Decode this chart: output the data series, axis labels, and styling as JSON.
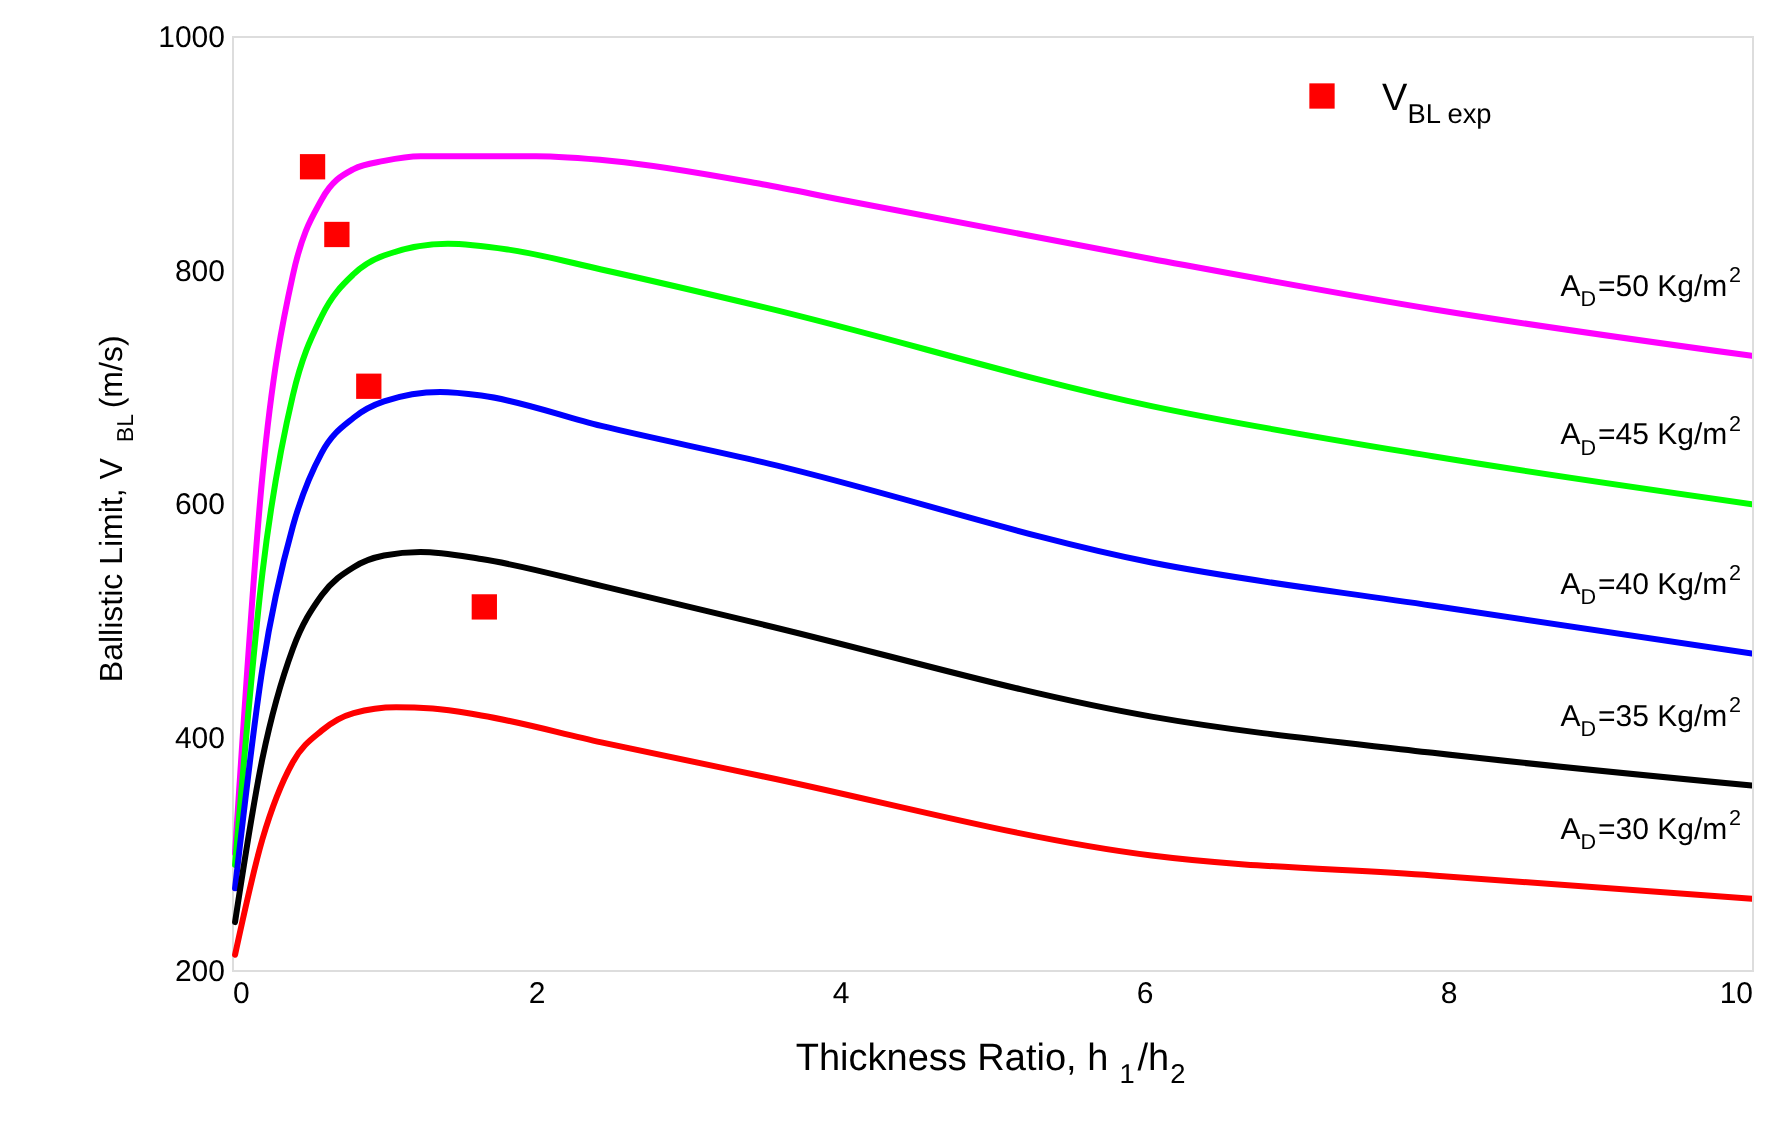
{
  "chart_data": {
    "type": "line",
    "xlabel": "Thickness Ratio, h$_{1}$/h$_{2}$",
    "ylabel": "Ballistic Limit, V$_{BL}$ (m/s)",
    "xlim": [
      0,
      10
    ],
    "xticks": [
      0,
      2,
      4,
      6,
      8,
      10
    ],
    "ylim": [
      200,
      1000
    ],
    "yticks": [
      200,
      400,
      600,
      800,
      1000
    ],
    "grid": false,
    "legend": "top right",
    "line_style": "solid",
    "series": [
      {
        "name": "A$_{D}$=50 Kg/m$^{2}$",
        "color": "#ff00ff",
        "x": [
          0.02,
          0.2,
          0.4,
          0.59,
          0.8,
          1.0,
          1.24,
          2.0,
          2.5,
          3.49,
          4.0,
          6.05,
          7.9,
          10.0
        ],
        "values": [
          300,
          623,
          795,
          860,
          886,
          893,
          897,
          897,
          893,
          873,
          860,
          809,
          766,
          726
        ]
      },
      {
        "name": "A$_{D}$=45 Kg/m$^{2}$",
        "color": "#00ff00",
        "x": [
          0.02,
          0.2,
          0.4,
          0.59,
          0.8,
          1.0,
          1.42,
          1.82,
          2.43,
          3.49,
          6.05,
          7.9,
          10.0
        ],
        "values": [
          290,
          540,
          692,
          760,
          796,
          812,
          822,
          817,
          800,
          768,
          683,
          640,
          599
        ]
      },
      {
        "name": "A$_{D}$=40 Kg/m$^{2}$",
        "color": "#0000ff",
        "x": [
          0.02,
          0.2,
          0.4,
          0.59,
          0.8,
          1.0,
          1.37,
          1.64,
          2.43,
          3.49,
          6.05,
          7.9,
          10.0
        ],
        "values": [
          270,
          458,
          580,
          643,
          673,
          687,
          695,
          692,
          666,
          635,
          549,
          512,
          471
        ]
      },
      {
        "name": "A$_{D}$=35 Kg/m$^{2}$",
        "color": "#000000",
        "x": [
          0.02,
          0.2,
          0.4,
          0.59,
          0.8,
          1.0,
          1.24,
          1.64,
          2.43,
          3.49,
          6.05,
          7.9,
          10.0
        ],
        "values": [
          241,
          381,
          475,
          521,
          545,
          555,
          558,
          552,
          529,
          496,
          417,
          386,
          358
        ]
      },
      {
        "name": "A$_{D}$=30 Kg/m$^{2}$",
        "color": "#ff0000",
        "x": [
          0.02,
          0.2,
          0.4,
          0.59,
          0.8,
          1.08,
          1.32,
          1.64,
          2.43,
          3.49,
          6.05,
          7.9,
          10.0
        ],
        "values": [
          213,
          312,
          378,
          405,
          420,
          425,
          424,
          418,
          395,
          366,
          298,
          281,
          261
        ]
      },
      {
        "name": "V$_{BL exp}$",
        "type": "scatter",
        "marker": "square",
        "color": "#ff0000",
        "x": [
          0.53,
          0.69,
          0.9,
          1.66
        ],
        "values": [
          888,
          830,
          700,
          511
        ]
      }
    ]
  }
}
